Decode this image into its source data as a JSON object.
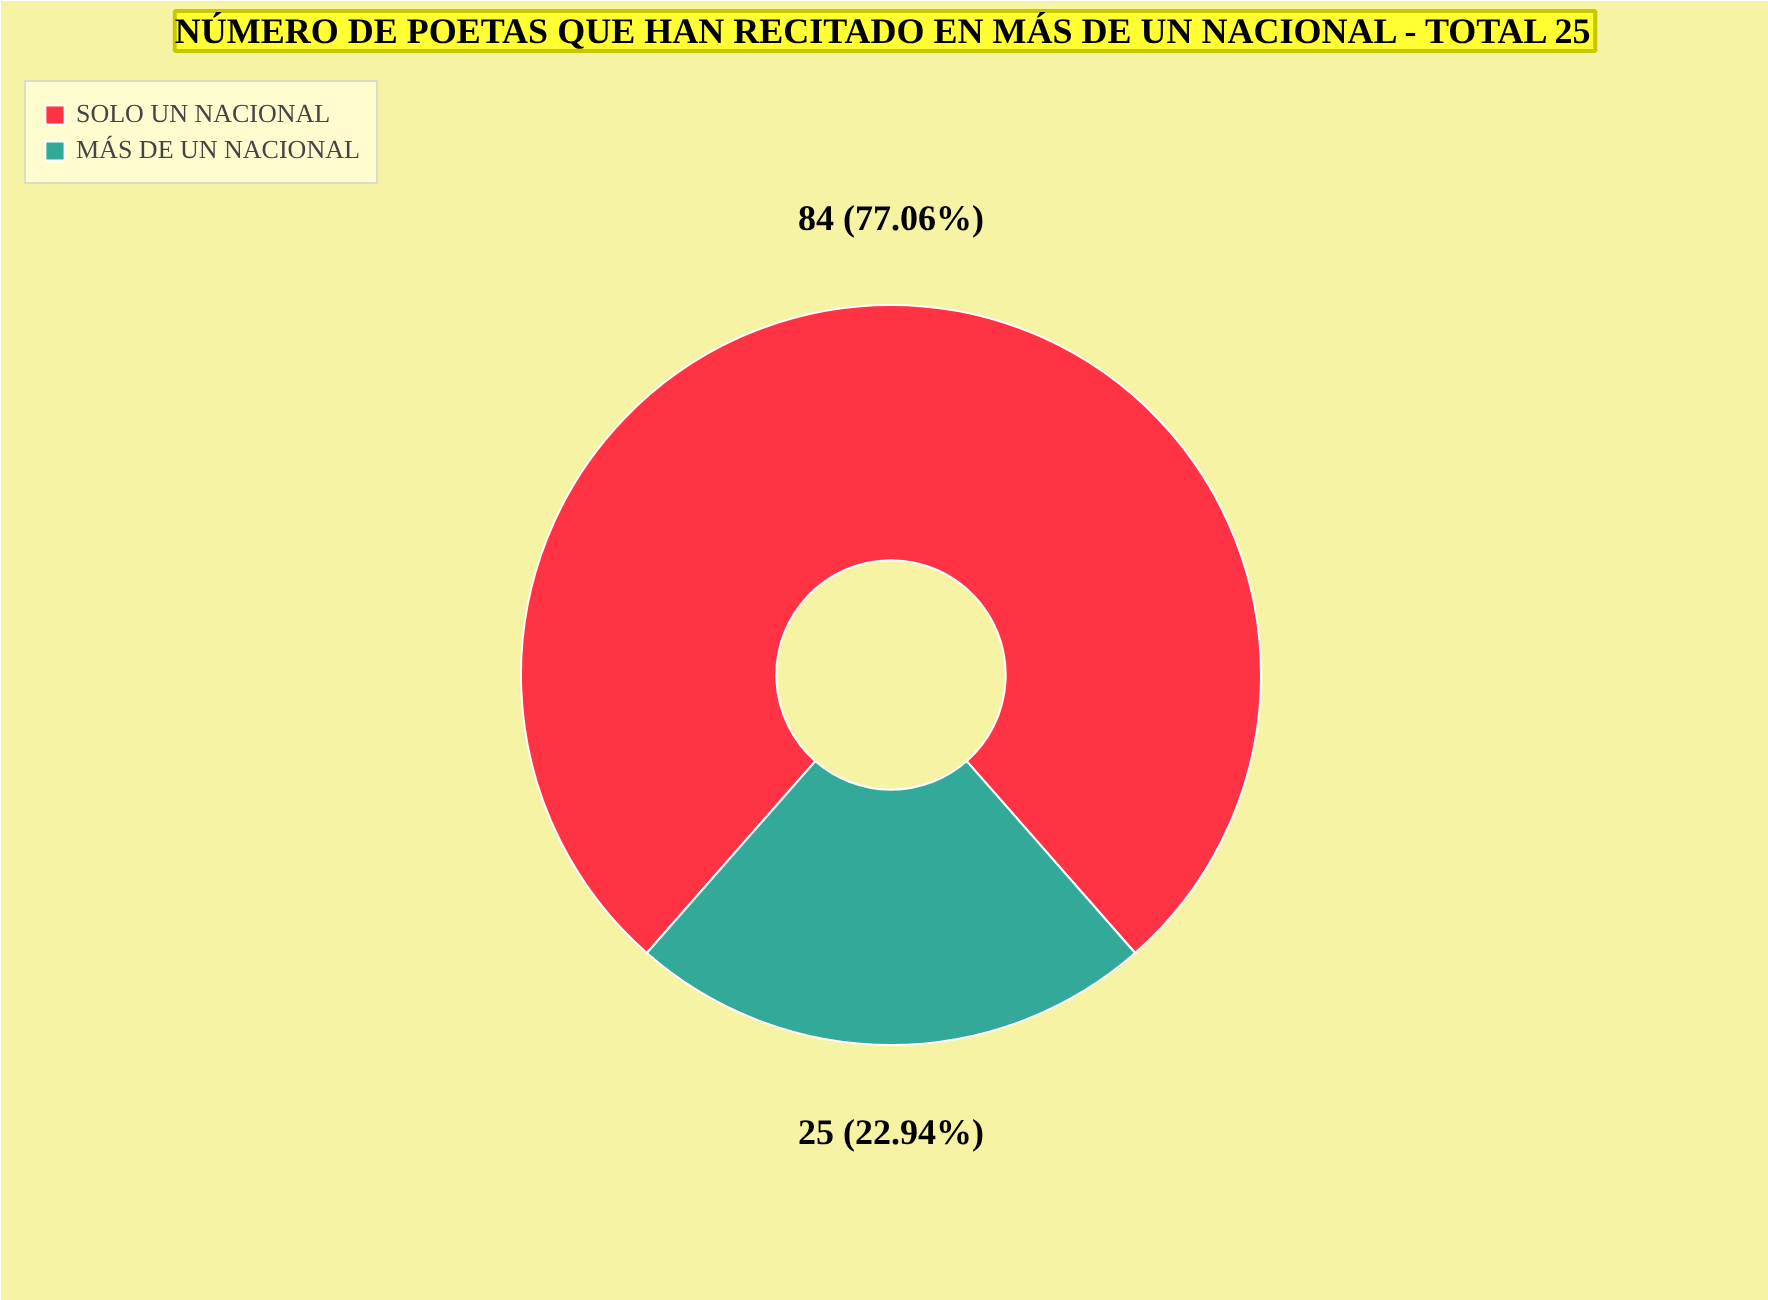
{
  "chart_data": {
    "type": "donut",
    "title": "NÚMERO DE POETAS QUE HAN RECITADO EN MÁS DE UN NACIONAL - TOTAL 25",
    "categories": [
      "SOLO UN NACIONAL",
      "MÁS DE UN NACIONAL"
    ],
    "values": [
      84,
      25
    ],
    "colors": [
      "#ff3344",
      "#33aa99"
    ],
    "value_labels": [
      "84 (77.06%)",
      "25 (22.94%)"
    ],
    "legend": "top left"
  }
}
